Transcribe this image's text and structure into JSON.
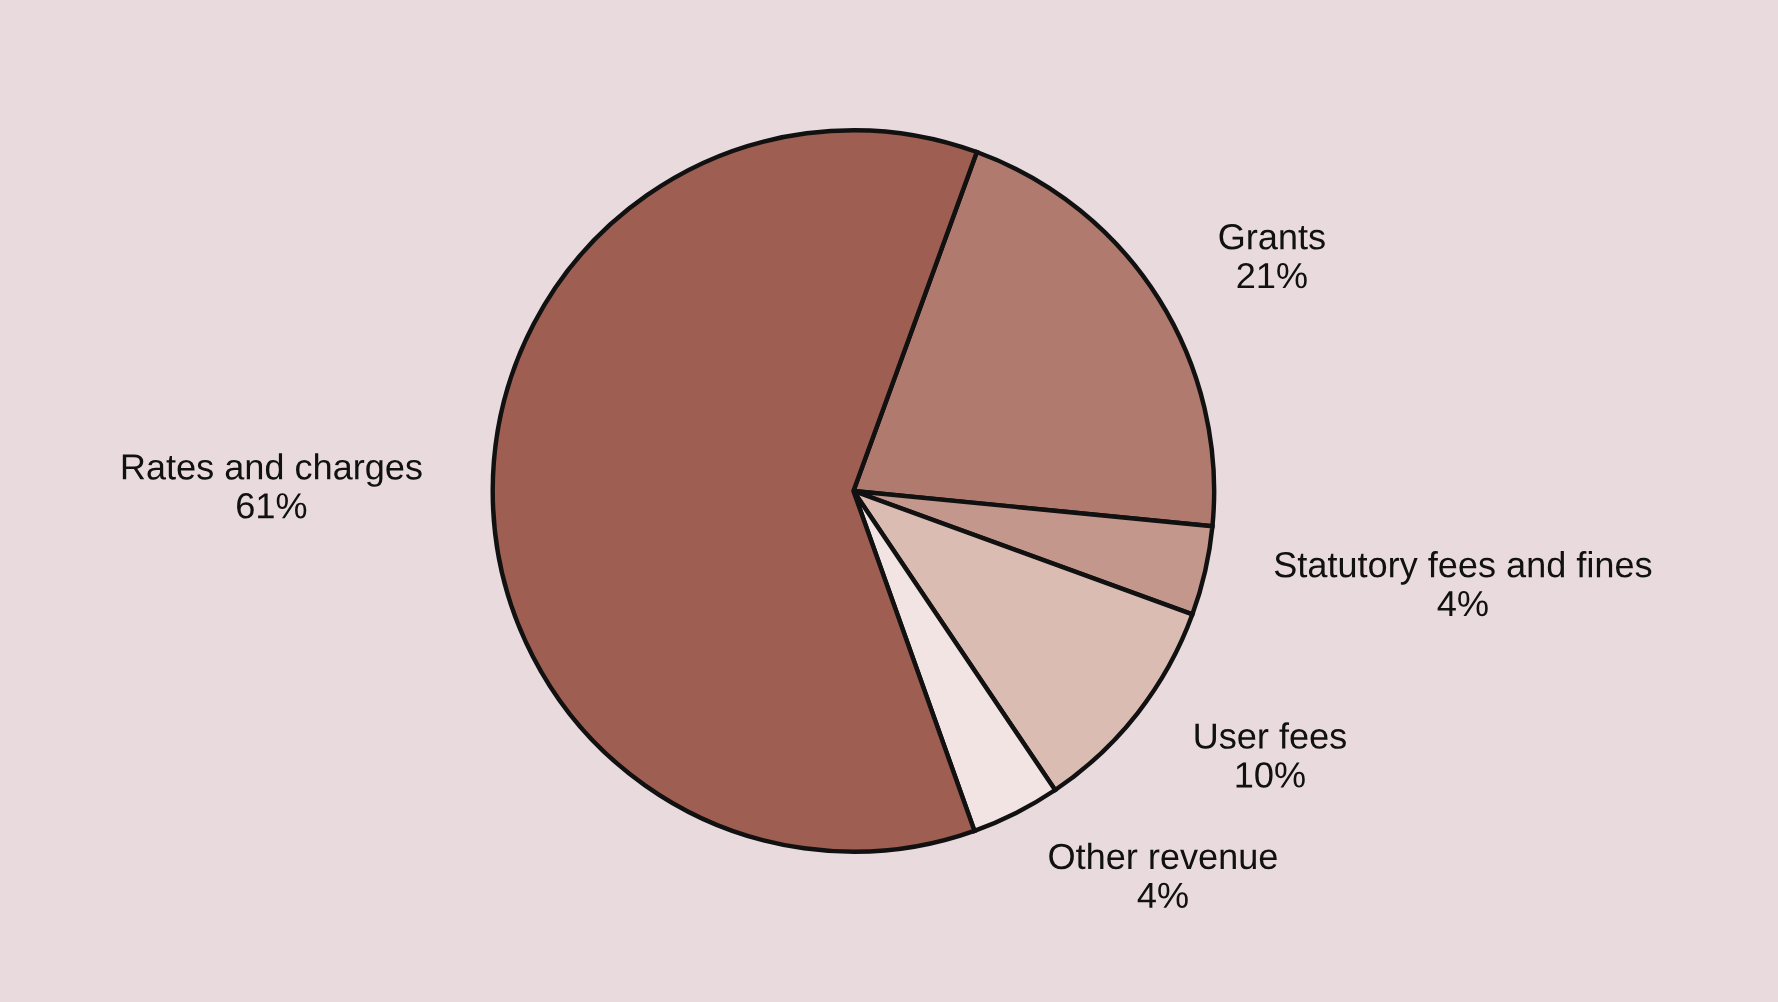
{
  "chart_data": {
    "type": "pie",
    "categories": [
      "Grants",
      "Statutory fees and fines",
      "User fees",
      "Other revenue",
      "Rates and charges"
    ],
    "values": [
      21,
      4,
      10,
      4,
      61
    ],
    "value_labels": [
      "21%",
      "4%",
      "10%",
      "4%",
      "61%"
    ],
    "colors": [
      "#b07a6e",
      "#c4978d",
      "#dbbcb3",
      "#f2e4e2",
      "#9e5e52"
    ]
  }
}
